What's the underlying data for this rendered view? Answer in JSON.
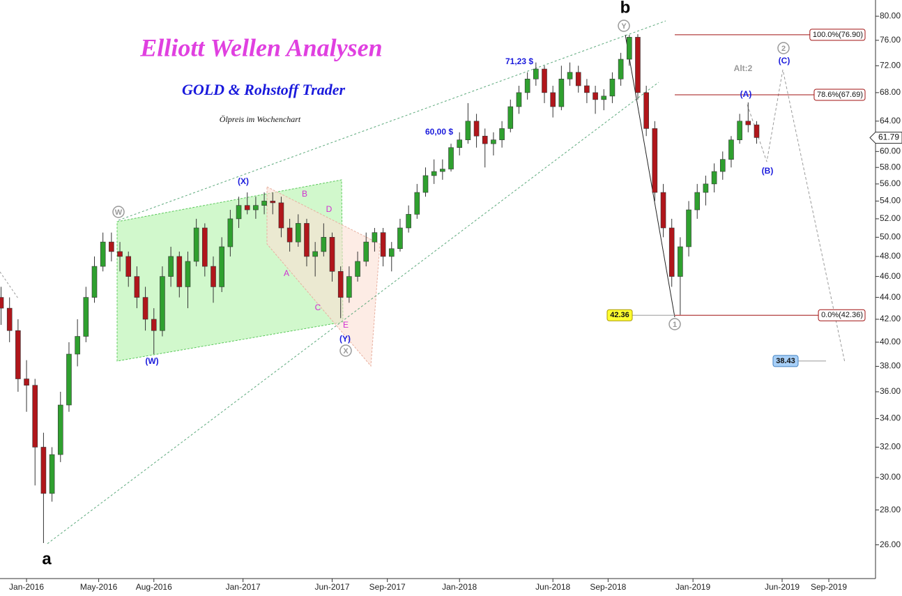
{
  "chart_data": {
    "type": "candlestick",
    "title": "Elliott Wellen Analysen",
    "subtitle": "GOLD & Rohstoff Trader",
    "note": "Ölpreis im Wochenchart",
    "log_scale": true,
    "up_color": "#2fa02f",
    "down_color": "#b0161b",
    "x": [
      -6,
      -4,
      -2,
      0,
      2,
      4,
      6,
      8,
      10,
      12,
      14,
      16,
      18,
      20,
      22,
      24,
      26,
      28,
      30,
      32,
      34,
      36,
      38,
      40,
      42,
      44,
      46,
      48,
      50,
      52,
      54,
      56,
      58,
      60,
      62,
      64,
      66,
      68,
      70,
      72,
      74,
      76,
      78,
      80,
      82,
      84,
      86,
      88,
      90,
      92,
      94,
      96,
      98,
      100,
      102,
      104,
      106,
      108,
      110,
      112,
      114,
      116,
      118,
      120,
      122,
      124,
      126,
      128,
      130,
      132,
      134,
      136,
      138,
      140,
      142,
      144,
      146,
      148,
      150,
      152,
      154,
      156,
      158,
      160,
      162,
      164,
      166,
      168,
      170,
      172
    ],
    "open": [
      44,
      43,
      41,
      37,
      36.5,
      32,
      29,
      31.5,
      35,
      39,
      40.5,
      44,
      47,
      49.5,
      48.5,
      48,
      46,
      44,
      42,
      41,
      46,
      48,
      45,
      47.5,
      51,
      47,
      45,
      49,
      52,
      53.5,
      53,
      53.5,
      54,
      53.8,
      51,
      49.5,
      51.5,
      48,
      48.5,
      50,
      46.5,
      44,
      46,
      47.5,
      49.5,
      50.5,
      48,
      48.8,
      51,
      52.5,
      55,
      57,
      57.5,
      57.8,
      60.5,
      61.5,
      64,
      62,
      61,
      61.5,
      63,
      66,
      68,
      70,
      71.5,
      68,
      66,
      70,
      71,
      69,
      68,
      67,
      67.5,
      70,
      73,
      76.5,
      68,
      63,
      55,
      51,
      46,
      49,
      53,
      55,
      56,
      57.5,
      59,
      61.5,
      64,
      63.5
    ],
    "high": [
      45,
      44,
      42,
      38.5,
      37,
      33,
      32,
      36,
      40,
      42,
      45,
      48,
      50.5,
      50.5,
      49.5,
      48.5,
      47,
      45,
      43,
      47,
      49,
      48.5,
      48.5,
      52,
      51.5,
      48,
      50,
      53,
      54.5,
      55,
      54.5,
      55,
      55,
      54.5,
      52,
      52.5,
      52,
      49.5,
      51.5,
      50.5,
      47,
      47,
      48.5,
      50.5,
      51,
      51,
      49.5,
      52,
      53.5,
      56,
      58,
      59,
      59,
      61,
      62.5,
      66.5,
      65,
      63,
      62.5,
      64,
      67,
      69,
      71,
      72.5,
      72,
      69,
      72,
      72.5,
      72,
      70,
      69,
      68.5,
      71,
      74,
      76.9,
      77,
      69,
      64,
      56,
      52,
      50,
      54,
      56,
      57,
      58.5,
      60,
      62,
      65,
      66.6,
      64
    ],
    "low": [
      41.5,
      40,
      36,
      34.5,
      29.5,
      26.1,
      28.5,
      31,
      34.5,
      38,
      40,
      43.5,
      46.5,
      47.5,
      46.5,
      45,
      43,
      41,
      39,
      40.5,
      45,
      44,
      43,
      47,
      46,
      43.5,
      44.5,
      48,
      51,
      52.5,
      52,
      52.5,
      52.5,
      50,
      48.5,
      49,
      47,
      46,
      48,
      45.5,
      42.1,
      43.5,
      45.5,
      47,
      48.5,
      47,
      46.5,
      48.5,
      50.5,
      52,
      54.5,
      56,
      56.5,
      57.5,
      59.5,
      61,
      60.5,
      58,
      59.5,
      60.5,
      62.5,
      65,
      67,
      69,
      66.5,
      64.5,
      65.5,
      69,
      68,
      66.5,
      65,
      65.5,
      66.5,
      69,
      72,
      67,
      62,
      54,
      50,
      45,
      42.4,
      48,
      52,
      53.5,
      55,
      56.5,
      58,
      61,
      62.5,
      61
    ],
    "close": [
      43,
      41,
      37,
      36.5,
      32,
      29,
      31.5,
      35,
      39,
      40.5,
      44,
      47,
      49.5,
      48.5,
      48,
      46,
      44,
      42,
      41,
      46,
      48,
      45,
      47.5,
      51,
      47,
      45,
      49,
      52,
      53.5,
      53,
      53.5,
      54,
      53.8,
      51,
      49.5,
      51.5,
      48,
      48.5,
      50,
      46.5,
      44,
      46,
      47.5,
      49.5,
      50.5,
      48,
      48.8,
      51,
      52.5,
      55,
      57,
      57.5,
      57.8,
      60.5,
      61.5,
      64,
      62,
      61,
      61.5,
      63,
      66,
      68,
      70,
      71.5,
      68,
      66,
      70,
      71,
      69,
      68,
      67,
      67.5,
      70,
      73,
      76.5,
      68,
      63,
      55,
      51,
      46,
      49,
      53,
      55,
      56,
      57.5,
      59,
      61.5,
      64,
      63.5,
      61.8
    ],
    "xlim": [
      -6.25,
      200
    ],
    "ylim": [
      24.2,
      82.8
    ],
    "xticks": [
      {
        "value": 0,
        "label": "Jan-2016"
      },
      {
        "value": 17,
        "label": "May-2016"
      },
      {
        "value": 30,
        "label": "Aug-2016"
      },
      {
        "value": 51,
        "label": "Jan-2017"
      },
      {
        "value": 72,
        "label": "Jun-2017"
      },
      {
        "value": 85,
        "label": "Sep-2017"
      },
      {
        "value": 102,
        "label": "Jan-2018"
      },
      {
        "value": 124,
        "label": "Jun-2018"
      },
      {
        "value": 137,
        "label": "Sep-2018"
      },
      {
        "value": 157,
        "label": "Jan-2019"
      },
      {
        "value": 178,
        "label": "Jun-2019"
      },
      {
        "value": 189,
        "label": "Sep-2019"
      }
    ],
    "yticks": [
      {
        "value": 26,
        "label": "26.00"
      },
      {
        "value": 28,
        "label": "28.00"
      },
      {
        "value": 30,
        "label": "30.00"
      },
      {
        "value": 32,
        "label": "32.00"
      },
      {
        "value": 34,
        "label": "34.00"
      },
      {
        "value": 36,
        "label": "36.00"
      },
      {
        "value": 38,
        "label": "38.00"
      },
      {
        "value": 40,
        "label": "40.00"
      },
      {
        "value": 42,
        "label": "42.00"
      },
      {
        "value": 44,
        "label": "44.00"
      },
      {
        "value": 46,
        "label": "46.00"
      },
      {
        "value": 48,
        "label": "48.00"
      },
      {
        "value": 50,
        "label": "50.00"
      },
      {
        "value": 52,
        "label": "52.00"
      },
      {
        "value": 54,
        "label": "54.00"
      },
      {
        "value": 56,
        "label": "56.00"
      },
      {
        "value": 58,
        "label": "58.00"
      },
      {
        "value": 60,
        "label": "60.00"
      },
      {
        "value": 64,
        "label": "64.00"
      },
      {
        "value": 68,
        "label": "68.00"
      },
      {
        "value": 72,
        "label": "72.00"
      },
      {
        "value": 76,
        "label": "76.00"
      },
      {
        "value": 80,
        "label": "80.00"
      }
    ],
    "fib_levels": [
      {
        "value": 76.9,
        "label": "100.0%(76.90)"
      },
      {
        "value": 67.69,
        "label": "78.6%(67.69)"
      },
      {
        "value": 42.36,
        "label": "0.0%(42.36)"
      }
    ],
    "price_tags": [
      42.36,
      38.43
    ],
    "last_price": 61.79,
    "wave_labels": [
      "a",
      "b",
      "W",
      "X",
      "Y",
      "1",
      "2",
      "(W)",
      "(X)",
      "(Y)",
      "(A)",
      "(B)",
      "(C)",
      "A",
      "B",
      "C",
      "D",
      "E",
      "71,23 $",
      "60,00 $",
      "Alt:2"
    ]
  }
}
